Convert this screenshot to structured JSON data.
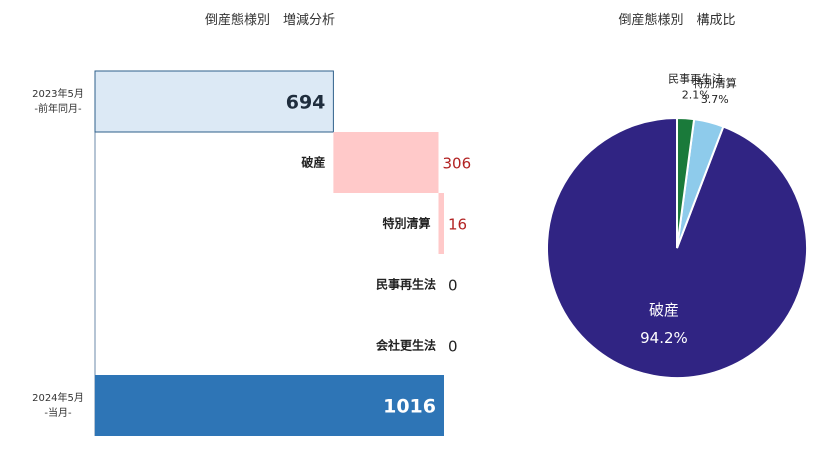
{
  "chart_data": [
    {
      "type": "bar",
      "title": "倒産態様別　増減分析",
      "start": {
        "label_line1": "2023年5月",
        "label_line2": "-前年同月-",
        "value": 694,
        "color": "#dce9f5",
        "border": "#2e5f8a"
      },
      "steps": [
        {
          "name": "破産",
          "value": 306,
          "display": "306",
          "color": "#ffc9c9",
          "text_color": "#b22222"
        },
        {
          "name": "特別清算",
          "value": 16,
          "display": "16",
          "color": "#ffc9c9",
          "text_color": "#b22222"
        },
        {
          "name": "民事再生法",
          "value": 0,
          "display": "0",
          "color": "#ffc9c9",
          "text_color": "#222222"
        },
        {
          "name": "会社更生法",
          "value": 0,
          "display": "0",
          "color": "#ffc9c9",
          "text_color": "#222222"
        }
      ],
      "end": {
        "label_line1": "2024年5月",
        "label_line2": "-当月-",
        "value": 1016,
        "color": "#2e75b6"
      },
      "axis_max": 1016
    },
    {
      "type": "pie",
      "title": "倒産態様別　構成比",
      "slices": [
        {
          "name": "破産",
          "percent": 94.2,
          "label": "94.2%",
          "color": "#302483"
        },
        {
          "name": "特別清算",
          "percent": 3.7,
          "label": "3.7%",
          "color": "#8ecbeb"
        },
        {
          "name": "民事再生法",
          "percent": 2.1,
          "label": "2.1%",
          "color": "#1a7a3a"
        }
      ]
    }
  ]
}
